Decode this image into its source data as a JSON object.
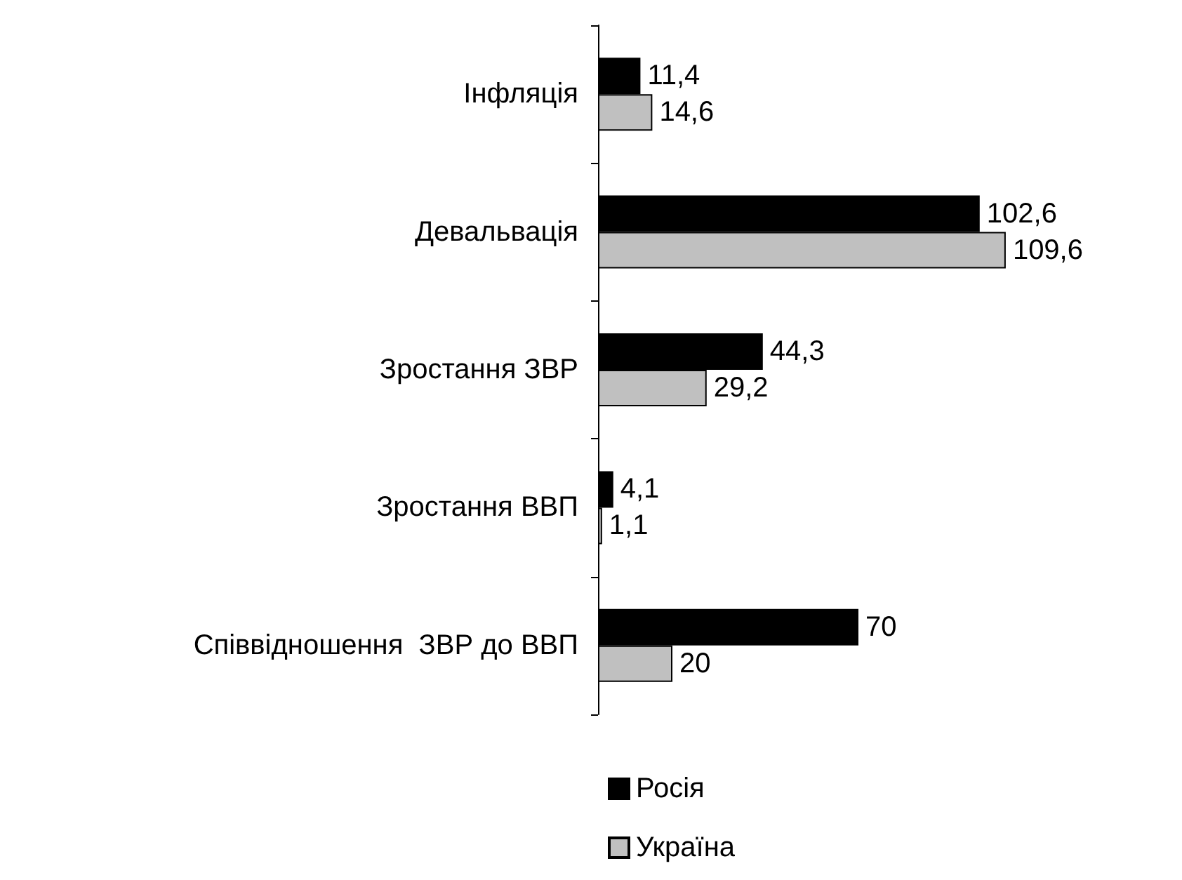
{
  "chart_data": {
    "type": "bar",
    "orientation": "horizontal",
    "categories": [
      "Інфляція",
      "Девальвація",
      "Зростання ЗВР",
      "Зростання ВВП",
      "Співвідношення  ЗВР до ВВП"
    ],
    "series": [
      {
        "name": "Росія",
        "color": "#000000",
        "values": [
          11.4,
          102.6,
          44.3,
          4.1,
          70
        ],
        "value_labels": [
          "11,4",
          "102,6",
          "44,3",
          "4,1",
          "70"
        ]
      },
      {
        "name": "Україна",
        "color": "#c0c0c0",
        "values": [
          14.6,
          109.6,
          29.2,
          1.1,
          20
        ],
        "value_labels": [
          "14,6",
          "109,6",
          "29,2",
          "1,1",
          "20"
        ]
      }
    ],
    "tick_labels": "y",
    "legend": "bottom"
  }
}
